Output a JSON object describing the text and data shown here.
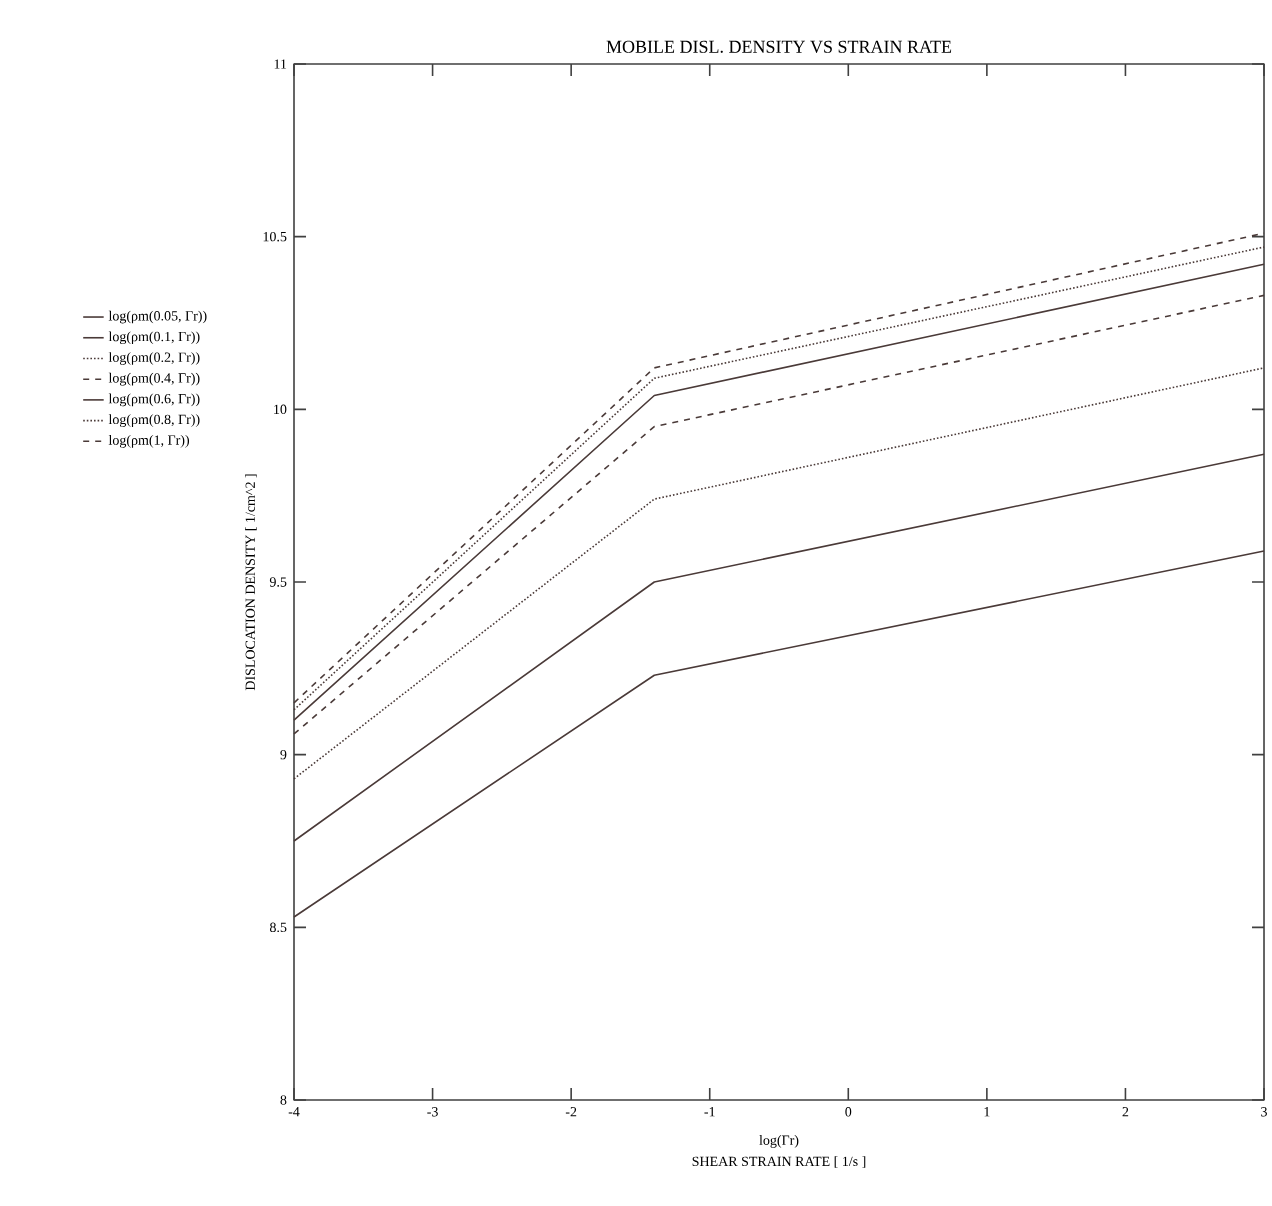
{
  "chart_data": {
    "type": "line",
    "title": "MOBILE DISL. DENSITY VS STRAIN RATE",
    "xlabel": "SHEAR STRAIN RATE [ 1/s ]",
    "ylabel": "DISLOCATION DENSITY [ 1/cm^2 ]",
    "annotations": [
      "log(Γr)"
    ],
    "x": [
      -4,
      -1.4,
      3
    ],
    "xlim": [
      -4,
      3
    ],
    "xticks": [
      -4,
      -3,
      -2,
      -1,
      0,
      1,
      2,
      3
    ],
    "ylim": [
      8,
      11
    ],
    "yticks": [
      8,
      8.5,
      9,
      9.5,
      10,
      10.5,
      11
    ],
    "grid": false,
    "legend": "left",
    "marker": "none",
    "series": [
      {
        "name": "log(ρm(0.05, Γr))",
        "color": "#4a3a38",
        "line_style": "solid",
        "values": [
          8.53,
          9.23,
          9.59
        ]
      },
      {
        "name": "log(ρm(0.1, Γr))",
        "color": "#4a3a38",
        "line_style": "solid",
        "values": [
          8.75,
          9.5,
          9.87
        ]
      },
      {
        "name": "log(ρm(0.2, Γr))",
        "color": "#4a3a38",
        "line_style": "dotted",
        "values": [
          8.93,
          9.74,
          10.12
        ]
      },
      {
        "name": "log(ρm(0.4, Γr))",
        "color": "#4a3a38",
        "line_style": "dashed",
        "values": [
          9.06,
          9.95,
          10.33
        ]
      },
      {
        "name": "log(ρm(0.6, Γr))",
        "color": "#4a3a38",
        "line_style": "solid",
        "values": [
          9.1,
          10.04,
          10.42
        ]
      },
      {
        "name": "log(ρm(0.8, Γr))",
        "color": "#4a3a38",
        "line_style": "dotted",
        "values": [
          9.13,
          10.09,
          10.47
        ]
      },
      {
        "name": "log(ρm(1, Γr))",
        "color": "#4a3a38",
        "line_style": "dashed",
        "values": [
          9.15,
          10.12,
          10.51
        ]
      }
    ]
  }
}
